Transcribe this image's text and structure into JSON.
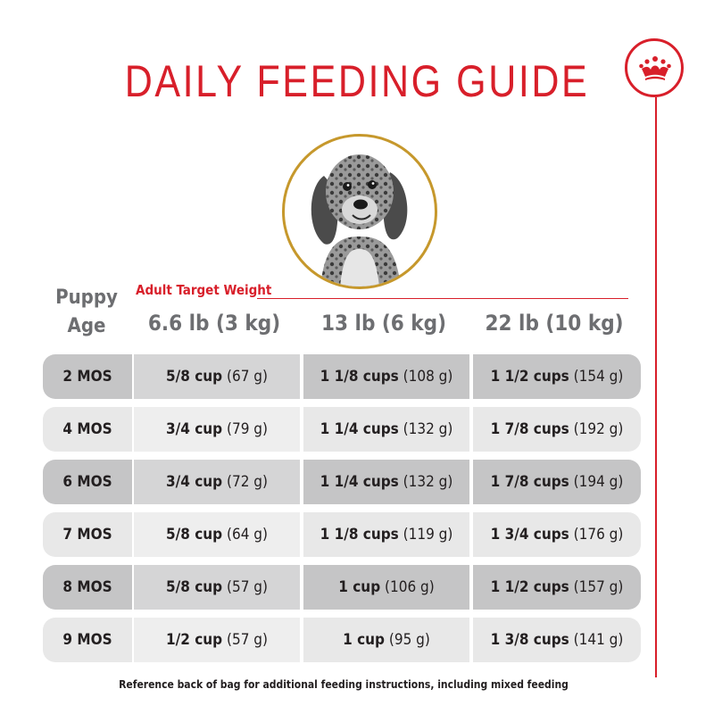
{
  "title": "DAILY FEEDING GUIDE",
  "brand": {
    "logo_icon": "crown-icon",
    "accent_color": "#d81f2a",
    "frame_color": "#c6982c"
  },
  "header": {
    "age_label_line1": "Puppy",
    "age_label_line2": "Age",
    "target_label": "Adult Target Weight",
    "weights": [
      "6.6 lb (3 kg)",
      "13 lb (6 kg)",
      "22 lb (10 kg)"
    ]
  },
  "rows": [
    {
      "age": "2 MOS",
      "cells": [
        {
          "amount": "5/8 cup",
          "grams": "(67 g)"
        },
        {
          "amount": "1 1/8 cups",
          "grams": "(108 g)"
        },
        {
          "amount": "1 1/2 cups",
          "grams": "(154 g)"
        }
      ]
    },
    {
      "age": "4 MOS",
      "cells": [
        {
          "amount": "3/4 cup",
          "grams": "(79 g)"
        },
        {
          "amount": "1 1/4 cups",
          "grams": "(132 g)"
        },
        {
          "amount": "1 7/8 cups",
          "grams": "(192 g)"
        }
      ]
    },
    {
      "age": "6 MOS",
      "cells": [
        {
          "amount": "3/4 cup",
          "grams": "(72 g)"
        },
        {
          "amount": "1 1/4 cups",
          "grams": "(132 g)"
        },
        {
          "amount": "1 7/8 cups",
          "grams": "(194 g)"
        }
      ]
    },
    {
      "age": "7 MOS",
      "cells": [
        {
          "amount": "5/8 cup",
          "grams": "(64 g)"
        },
        {
          "amount": "1 1/8 cups",
          "grams": "(119 g)"
        },
        {
          "amount": "1 3/4 cups",
          "grams": "(176 g)"
        }
      ]
    },
    {
      "age": "8 MOS",
      "cells": [
        {
          "amount": "5/8 cup",
          "grams": "(57 g)"
        },
        {
          "amount": "1 cup",
          "grams": "(106 g)"
        },
        {
          "amount": "1 1/2 cups",
          "grams": "(157 g)"
        }
      ]
    },
    {
      "age": "9 MOS",
      "cells": [
        {
          "amount": "1/2 cup",
          "grams": "(57 g)"
        },
        {
          "amount": "1 cup",
          "grams": "(95 g)"
        },
        {
          "amount": "1 3/8 cups",
          "grams": "(141 g)"
        }
      ]
    }
  ],
  "footnote": "Reference back of bag for additional feeding instructions, including mixed feeding"
}
